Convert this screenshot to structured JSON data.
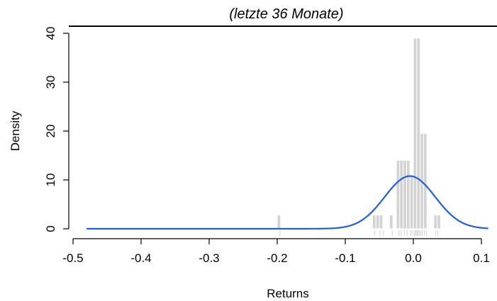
{
  "chart_data": {
    "type": "bar",
    "title": "(letzte 36 Monate)",
    "xlabel": "Returns",
    "ylabel": "Density",
    "xlim": [
      -0.5,
      0.11
    ],
    "ylim": [
      0,
      42
    ],
    "x_ticks": [
      -0.5,
      -0.4,
      -0.3,
      -0.2,
      -0.1,
      0.0,
      0.1
    ],
    "x_tick_labels": [
      "-0.5",
      "-0.4",
      "-0.3",
      "-0.2",
      "-0.1",
      "0.0",
      "0.1"
    ],
    "y_ticks": [
      0,
      10,
      20,
      30,
      40
    ],
    "y_tick_labels": [
      "0",
      "10",
      "20",
      "30",
      "40"
    ],
    "histogram": {
      "bin_width": 0.005,
      "bins": [
        {
          "x0": -0.2,
          "x1": -0.195,
          "density": 2.8
        },
        {
          "x0": -0.06,
          "x1": -0.055,
          "density": 2.8
        },
        {
          "x0": -0.055,
          "x1": -0.05,
          "density": 2.8
        },
        {
          "x0": -0.05,
          "x1": -0.045,
          "density": 2.8
        },
        {
          "x0": -0.035,
          "x1": -0.03,
          "density": 2.8
        },
        {
          "x0": -0.025,
          "x1": -0.02,
          "density": 14.0
        },
        {
          "x0": -0.02,
          "x1": -0.015,
          "density": 14.0
        },
        {
          "x0": -0.015,
          "x1": -0.01,
          "density": 14.0
        },
        {
          "x0": -0.01,
          "x1": -0.005,
          "density": 14.0
        },
        {
          "x0": -0.005,
          "x1": 0.0,
          "density": 11.0
        },
        {
          "x0": 0.0,
          "x1": 0.005,
          "density": 39.0
        },
        {
          "x0": 0.005,
          "x1": 0.01,
          "density": 39.0
        },
        {
          "x0": 0.01,
          "x1": 0.015,
          "density": 19.5
        },
        {
          "x0": 0.015,
          "x1": 0.02,
          "density": 19.5
        },
        {
          "x0": 0.03,
          "x1": 0.035,
          "density": 2.8
        },
        {
          "x0": 0.035,
          "x1": 0.04,
          "density": 2.8
        }
      ]
    },
    "density_curve": {
      "mean": -0.005,
      "sd": 0.037,
      "x_range": [
        -0.48,
        0.11
      ]
    },
    "rug": [
      -0.196,
      -0.057,
      -0.049,
      -0.044,
      -0.031,
      -0.021,
      -0.018,
      -0.013,
      -0.009,
      -0.004,
      -0.002,
      0.001,
      0.003,
      0.004,
      0.006,
      0.007,
      0.009,
      0.011,
      0.013,
      0.016,
      0.019,
      0.033,
      0.036
    ],
    "grid": false,
    "legend": "none"
  },
  "colors": {
    "bar_fill": "#d3d3d3",
    "bar_stroke": "#ffffff",
    "curve": "#1f5fe0",
    "axis": "#000000",
    "rug": "#d3d3d3"
  }
}
